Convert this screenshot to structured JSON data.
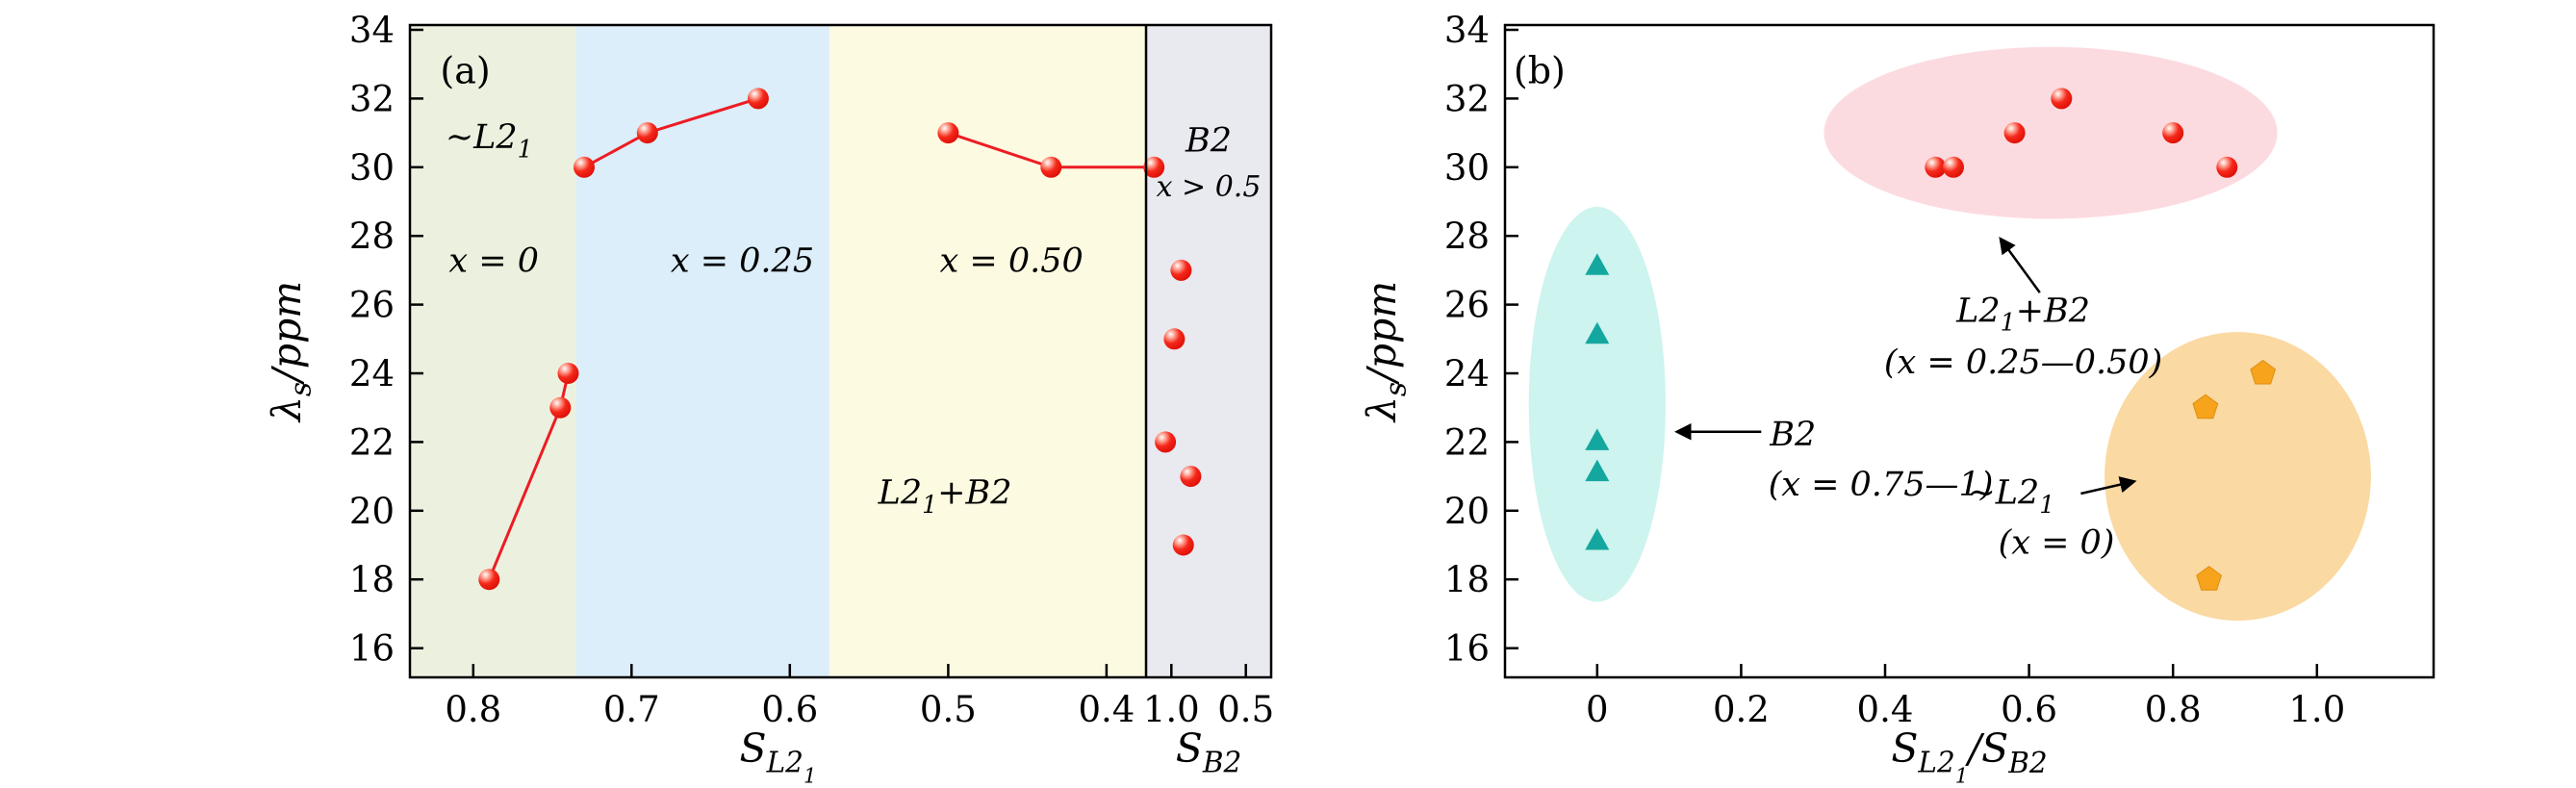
{
  "chart_data": [
    {
      "id": "panel_a",
      "type": "scatter",
      "panel_label": {
        "text": "(a)",
        "x": 0.805,
        "y": 32.45
      },
      "ylabel": "λ_{s}/ppm",
      "ylim": [
        15.15,
        34.14
      ],
      "yticks": [
        16,
        18,
        20,
        22,
        24,
        26,
        28,
        30,
        32,
        34
      ],
      "line_color": "#ed1c24",
      "marker_color": "#e8160c",
      "main_axis": {
        "xlabel": "S_{L2_{1}}",
        "x_reversed": true,
        "xlim": [
          0.84,
          0.375
        ],
        "xticks": [
          {
            "v": 0.8,
            "label": "0.8"
          },
          {
            "v": 0.7,
            "label": "0.7"
          },
          {
            "v": 0.6,
            "label": "0.6"
          },
          {
            "v": 0.5,
            "label": "0.5"
          },
          {
            "v": 0.4,
            "label": "0.4"
          }
        ],
        "regions": [
          {
            "name": "L21",
            "from": 0.84,
            "to": 0.735,
            "color": "#ecf1df"
          },
          {
            "name": "mix-low",
            "from": 0.735,
            "to": 0.575,
            "color": "#dbeef9"
          },
          {
            "name": "mix-high",
            "from": 0.575,
            "to": 0.375,
            "color": "#fcfae1"
          }
        ],
        "annotations": [
          {
            "text": "∼L2_{1}",
            "x": 0.79,
            "y": 30.55,
            "italic": true,
            "size": 35
          },
          {
            "text": "x = 0",
            "x": 0.787,
            "y": 26.95,
            "italic": true,
            "size": 35
          },
          {
            "text": "x = 0.25",
            "x": 0.63,
            "y": 26.95,
            "italic": true,
            "size": 35
          },
          {
            "text": "x = 0.50",
            "x": 0.46,
            "y": 26.95,
            "italic": true,
            "size": 35
          },
          {
            "text": "L2_{1}+B2",
            "x": 0.502,
            "y": 20.2,
            "italic": true,
            "size": 35
          }
        ],
        "series": [
          {
            "points": [
              [
                0.79,
                18
              ],
              [
                0.745,
                23
              ],
              [
                0.74,
                24
              ]
            ]
          },
          {
            "points": [
              [
                0.73,
                30
              ],
              [
                0.69,
                31
              ],
              [
                0.62,
                32
              ]
            ]
          },
          {
            "points": [
              [
                0.5,
                31
              ],
              [
                0.435,
                30
              ],
              [
                0.37,
                30
              ]
            ]
          }
        ]
      },
      "sub_axis": {
        "xlabel": "S_{B2}",
        "x_reversed": true,
        "xlim": [
          1.17,
          0.33
        ],
        "xticks": [
          {
            "v": 1.0,
            "label": "1.0"
          },
          {
            "v": 0.5,
            "label": "0.5"
          }
        ],
        "background": "#e9e9f0",
        "annotations": [
          {
            "text": "B2",
            "x": 0.75,
            "y": 30.45,
            "italic": true,
            "size": 35
          },
          {
            "text": "x > 0.5",
            "x": 0.75,
            "y": 29.15,
            "italic": true,
            "size": 30
          }
        ],
        "points": [
          [
            0.935,
            27
          ],
          [
            0.98,
            25
          ],
          [
            1.04,
            22
          ],
          [
            0.87,
            21
          ],
          [
            0.92,
            19
          ]
        ]
      }
    },
    {
      "id": "panel_b",
      "type": "scatter",
      "panel_label": {
        "text": "(b)",
        "x": -0.08,
        "y": 32.45
      },
      "ylabel": "λ_{s}/ppm",
      "ylim": [
        15.15,
        34.14
      ],
      "yticks": [
        16,
        18,
        20,
        22,
        24,
        26,
        28,
        30,
        32,
        34
      ],
      "xlabel": "S_{L2_{1}}/S_{B2}",
      "xlim": [
        -0.128,
        1.162
      ],
      "xticks": [
        {
          "v": 0,
          "label": "0"
        },
        {
          "v": 0.2,
          "label": "0.2"
        },
        {
          "v": 0.4,
          "label": "0.4"
        },
        {
          "v": 0.6,
          "label": "0.6"
        },
        {
          "v": 0.8,
          "label": "0.8"
        },
        {
          "v": 1.0,
          "label": "1.0"
        }
      ],
      "groups": [
        {
          "name": "B2 (x = 0.75—1)",
          "marker": "triangle",
          "color": "#14a79f",
          "ellipse": {
            "cx": 0.0,
            "cy": 23.1,
            "rx": 0.095,
            "ry": 5.75,
            "fill": "#cdf4ef"
          },
          "points": [
            [
              0,
              27.1
            ],
            [
              0,
              25.1
            ],
            [
              0,
              22.0
            ],
            [
              0,
              21.1
            ],
            [
              0,
              19.1
            ]
          ]
        },
        {
          "name": "L21+B2 (x = 0.25—0.50)",
          "marker": "sphere",
          "color": "#e8160c",
          "ellipse": {
            "cx": 0.63,
            "cy": 31.0,
            "rx": 0.315,
            "ry": 2.5,
            "fill": "#fcdbe0"
          },
          "points": [
            [
              0.47,
              30
            ],
            [
              0.495,
              30
            ],
            [
              0.58,
              31
            ],
            [
              0.645,
              32
            ],
            [
              0.8,
              31
            ],
            [
              0.875,
              30
            ]
          ]
        },
        {
          "name": "L21 (x = 0)",
          "marker": "pentagon",
          "color": "#f7a31c",
          "ellipse": {
            "cx": 0.89,
            "cy": 21.0,
            "rx": 0.185,
            "ry": 4.2,
            "fill": "#fad9a2"
          },
          "points": [
            [
              0.845,
              23
            ],
            [
              0.925,
              24
            ],
            [
              0.85,
              18
            ]
          ]
        }
      ],
      "callouts": [
        {
          "lines": [
            {
              "text": "L2_{1}+B2",
              "x": 0.592,
              "y": 25.5
            },
            {
              "text": "(x = 0.25—0.50)",
              "x": 0.592,
              "y": 24.0
            }
          ],
          "arrow": {
            "x1": 0.615,
            "y1": 26.35,
            "x2": 0.561,
            "y2": 27.9
          }
        },
        {
          "lines": [
            {
              "text": "B2",
              "x": 0.272,
              "y": 21.9
            },
            {
              "text": "(x = 0.75—1)",
              "x": 0.394,
              "y": 20.45
            }
          ],
          "arrow": {
            "x1": 0.228,
            "y1": 22.3,
            "x2": 0.112,
            "y2": 22.3
          }
        },
        {
          "lines": [
            {
              "text": "∼L2_{1}",
              "x": 0.575,
              "y": 20.2
            },
            {
              "text": "(x = 0)",
              "x": 0.638,
              "y": 18.75
            }
          ],
          "arrow": {
            "x1": 0.672,
            "y1": 20.5,
            "x2": 0.745,
            "y2": 20.85
          }
        }
      ]
    }
  ]
}
